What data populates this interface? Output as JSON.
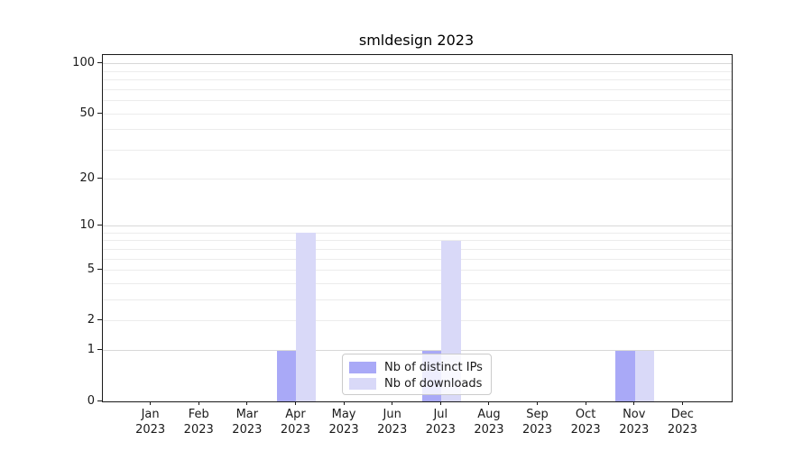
{
  "chart_data": {
    "type": "bar",
    "title": "smldesign 2023",
    "year": "2023",
    "categories": [
      "Jan",
      "Feb",
      "Mar",
      "Apr",
      "May",
      "Jun",
      "Jul",
      "Aug",
      "Sep",
      "Oct",
      "Nov",
      "Dec"
    ],
    "series": [
      {
        "name": "Nb of distinct IPs",
        "color": "#a9a9f7",
        "values": [
          0,
          0,
          0,
          1,
          0,
          0,
          1,
          0,
          0,
          0,
          1,
          0
        ]
      },
      {
        "name": "Nb of downloads",
        "color": "#d9d9f8",
        "values": [
          0,
          0,
          0,
          9,
          0,
          0,
          8,
          0,
          0,
          0,
          1,
          0
        ]
      }
    ],
    "y_axis": {
      "scale": "log10(1+y)",
      "tick_values": [
        0,
        1,
        2,
        5,
        10,
        20,
        50,
        100
      ],
      "minor_gridlines": [
        2,
        3,
        4,
        5,
        6,
        7,
        8,
        9,
        20,
        30,
        40,
        50,
        60,
        70,
        80,
        90
      ],
      "major_gridlines": [
        1,
        10,
        100
      ],
      "max": 113
    },
    "legend_position": "lower center"
  }
}
